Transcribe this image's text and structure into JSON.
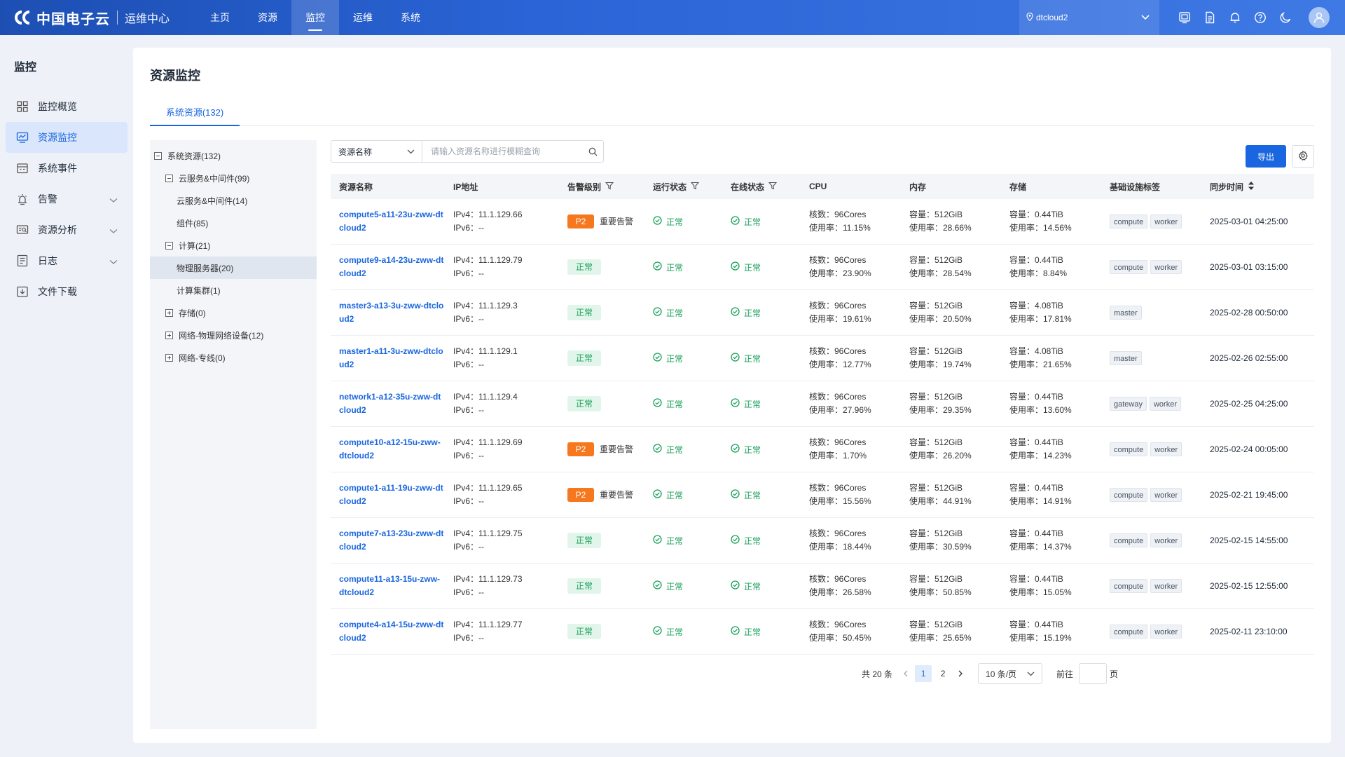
{
  "header": {
    "brand_name": "中国电子云",
    "brand_sub": "运维中心",
    "nav": [
      {
        "label": "主页",
        "active": false
      },
      {
        "label": "资源",
        "active": false
      },
      {
        "label": "监控",
        "active": true
      },
      {
        "label": "运维",
        "active": false
      },
      {
        "label": "系统",
        "active": false
      }
    ],
    "tenant": "dtcloud2",
    "icons": [
      "screen-icon",
      "document-icon",
      "bell-icon",
      "help-icon",
      "moon-icon"
    ],
    "colors": {
      "bar_start": "#1d4fb3",
      "bar_end": "#3f79e4",
      "accent": "#1a66e0"
    }
  },
  "sidebar": {
    "title": "监控",
    "items": [
      {
        "label": "监控概览",
        "icon": "grid-icon",
        "active": false,
        "expandable": false
      },
      {
        "label": "资源监控",
        "icon": "monitor-chart-icon",
        "active": true,
        "expandable": false
      },
      {
        "label": "系统事件",
        "icon": "calendar-icon",
        "active": false,
        "expandable": false
      },
      {
        "label": "告警",
        "icon": "alarm-icon",
        "active": false,
        "expandable": true
      },
      {
        "label": "资源分析",
        "icon": "analysis-icon",
        "active": false,
        "expandable": true
      },
      {
        "label": "日志",
        "icon": "log-icon",
        "active": false,
        "expandable": true
      },
      {
        "label": "文件下载",
        "icon": "download-icon",
        "active": false,
        "expandable": false
      }
    ]
  },
  "main": {
    "title": "资源监控",
    "tab": "系统资源(132)",
    "tree": [
      {
        "label": "系统资源(132)",
        "level": 0,
        "box": "minus",
        "selected": false
      },
      {
        "label": "云服务&中间件(99)",
        "level": 1,
        "box": "minus",
        "selected": false
      },
      {
        "label": "云服务&中间件(14)",
        "level": 2,
        "box": "none",
        "selected": false
      },
      {
        "label": "组件(85)",
        "level": 2,
        "box": "none",
        "selected": false
      },
      {
        "label": "计算(21)",
        "level": 1,
        "box": "minus",
        "selected": false
      },
      {
        "label": "物理服务器(20)",
        "level": 2,
        "box": "none",
        "selected": true
      },
      {
        "label": "计算集群(1)",
        "level": 2,
        "box": "none",
        "selected": false
      },
      {
        "label": "存储(0)",
        "level": 1,
        "box": "plus",
        "selected": false
      },
      {
        "label": "网络-物理网络设备(12)",
        "level": 1,
        "box": "plus",
        "selected": false
      },
      {
        "label": "网络-专线(0)",
        "level": 1,
        "box": "plus",
        "selected": false
      }
    ],
    "search": {
      "field": "资源名称",
      "placeholder": "请输入资源名称进行模糊查询"
    },
    "export_label": "导出",
    "columns": [
      "资源名称",
      "IP地址",
      "告警级别",
      "运行状态",
      "在线状态",
      "CPU",
      "内存",
      "存储",
      "基础设施标签",
      "同步时间"
    ],
    "rows": [
      {
        "name": "compute5-a11-23u-zww-dtcloud2",
        "ipv4": "IPv4：11.1.129.66",
        "ipv6": "IPv6：--",
        "alert": "P2",
        "alert_text": "重要告警",
        "run": "正常",
        "online": "正常",
        "cpu_cores": "核数：96Cores",
        "cpu_use": "使用率：11.15%",
        "mem_cap": "容量：512GiB",
        "mem_use": "使用率：28.66%",
        "sto_cap": "容量：0.44TiB",
        "sto_use": "使用率：14.56%",
        "tags": [
          "compute",
          "worker"
        ],
        "time": "2025-03-01 04:25:00"
      },
      {
        "name": "compute9-a14-23u-zww-dtcloud2",
        "ipv4": "IPv4：11.1.129.79",
        "ipv6": "IPv6：--",
        "alert": "",
        "alert_text": "正常",
        "run": "正常",
        "online": "正常",
        "cpu_cores": "核数：96Cores",
        "cpu_use": "使用率：23.90%",
        "mem_cap": "容量：512GiB",
        "mem_use": "使用率：28.54%",
        "sto_cap": "容量：0.44TiB",
        "sto_use": "使用率：8.84%",
        "tags": [
          "compute",
          "worker"
        ],
        "time": "2025-03-01 03:15:00"
      },
      {
        "name": "master3-a13-3u-zww-dtcloud2",
        "ipv4": "IPv4：11.1.129.3",
        "ipv6": "IPv6：--",
        "alert": "",
        "alert_text": "正常",
        "run": "正常",
        "online": "正常",
        "cpu_cores": "核数：96Cores",
        "cpu_use": "使用率：19.61%",
        "mem_cap": "容量：512GiB",
        "mem_use": "使用率：20.50%",
        "sto_cap": "容量：4.08TiB",
        "sto_use": "使用率：17.81%",
        "tags": [
          "master"
        ],
        "time": "2025-02-28 00:50:00"
      },
      {
        "name": "master1-a11-3u-zww-dtcloud2",
        "ipv4": "IPv4：11.1.129.1",
        "ipv6": "IPv6：--",
        "alert": "",
        "alert_text": "正常",
        "run": "正常",
        "online": "正常",
        "cpu_cores": "核数：96Cores",
        "cpu_use": "使用率：12.77%",
        "mem_cap": "容量：512GiB",
        "mem_use": "使用率：19.74%",
        "sto_cap": "容量：4.08TiB",
        "sto_use": "使用率：21.65%",
        "tags": [
          "master"
        ],
        "time": "2025-02-26 02:55:00"
      },
      {
        "name": "network1-a12-35u-zww-dtcloud2",
        "ipv4": "IPv4：11.1.129.4",
        "ipv6": "IPv6：--",
        "alert": "",
        "alert_text": "正常",
        "run": "正常",
        "online": "正常",
        "cpu_cores": "核数：96Cores",
        "cpu_use": "使用率：27.96%",
        "mem_cap": "容量：512GiB",
        "mem_use": "使用率：29.35%",
        "sto_cap": "容量：0.44TiB",
        "sto_use": "使用率：13.60%",
        "tags": [
          "gateway",
          "worker"
        ],
        "time": "2025-02-25 04:25:00"
      },
      {
        "name": "compute10-a12-15u-zww-dtcloud2",
        "ipv4": "IPv4：11.1.129.69",
        "ipv6": "IPv6：--",
        "alert": "P2",
        "alert_text": "重要告警",
        "run": "正常",
        "online": "正常",
        "cpu_cores": "核数：96Cores",
        "cpu_use": "使用率：1.70%",
        "mem_cap": "容量：512GiB",
        "mem_use": "使用率：26.20%",
        "sto_cap": "容量：0.44TiB",
        "sto_use": "使用率：14.23%",
        "tags": [
          "compute",
          "worker"
        ],
        "time": "2025-02-24 00:05:00"
      },
      {
        "name": "compute1-a11-19u-zww-dtcloud2",
        "ipv4": "IPv4：11.1.129.65",
        "ipv6": "IPv6：--",
        "alert": "P2",
        "alert_text": "重要告警",
        "run": "正常",
        "online": "正常",
        "cpu_cores": "核数：96Cores",
        "cpu_use": "使用率：15.56%",
        "mem_cap": "容量：512GiB",
        "mem_use": "使用率：44.91%",
        "sto_cap": "容量：0.44TiB",
        "sto_use": "使用率：14.91%",
        "tags": [
          "compute",
          "worker"
        ],
        "time": "2025-02-21 19:45:00"
      },
      {
        "name": "compute7-a13-23u-zww-dtcloud2",
        "ipv4": "IPv4：11.1.129.75",
        "ipv6": "IPv6：--",
        "alert": "",
        "alert_text": "正常",
        "run": "正常",
        "online": "正常",
        "cpu_cores": "核数：96Cores",
        "cpu_use": "使用率：18.44%",
        "mem_cap": "容量：512GiB",
        "mem_use": "使用率：30.59%",
        "sto_cap": "容量：0.44TiB",
        "sto_use": "使用率：14.37%",
        "tags": [
          "compute",
          "worker"
        ],
        "time": "2025-02-15 14:55:00"
      },
      {
        "name": "compute11-a13-15u-zww-dtcloud2",
        "ipv4": "IPv4：11.1.129.73",
        "ipv6": "IPv6：--",
        "alert": "",
        "alert_text": "正常",
        "run": "正常",
        "online": "正常",
        "cpu_cores": "核数：96Cores",
        "cpu_use": "使用率：26.58%",
        "mem_cap": "容量：512GiB",
        "mem_use": "使用率：50.85%",
        "sto_cap": "容量：0.44TiB",
        "sto_use": "使用率：15.05%",
        "tags": [
          "compute",
          "worker"
        ],
        "time": "2025-02-15 12:55:00"
      },
      {
        "name": "compute4-a14-15u-zww-dtcloud2",
        "ipv4": "IPv4：11.1.129.77",
        "ipv6": "IPv6：--",
        "alert": "",
        "alert_text": "正常",
        "run": "正常",
        "online": "正常",
        "cpu_cores": "核数：96Cores",
        "cpu_use": "使用率：50.45%",
        "mem_cap": "容量：512GiB",
        "mem_use": "使用率：25.65%",
        "sto_cap": "容量：0.44TiB",
        "sto_use": "使用率：15.19%",
        "tags": [
          "compute",
          "worker"
        ],
        "time": "2025-02-11 23:10:00"
      }
    ],
    "pagination": {
      "total": "共 20 条",
      "pages": [
        "1",
        "2"
      ],
      "current": "1",
      "page_size": "10 条/页",
      "goto_label": "前往",
      "goto_value": "",
      "page_suffix": "页"
    }
  }
}
